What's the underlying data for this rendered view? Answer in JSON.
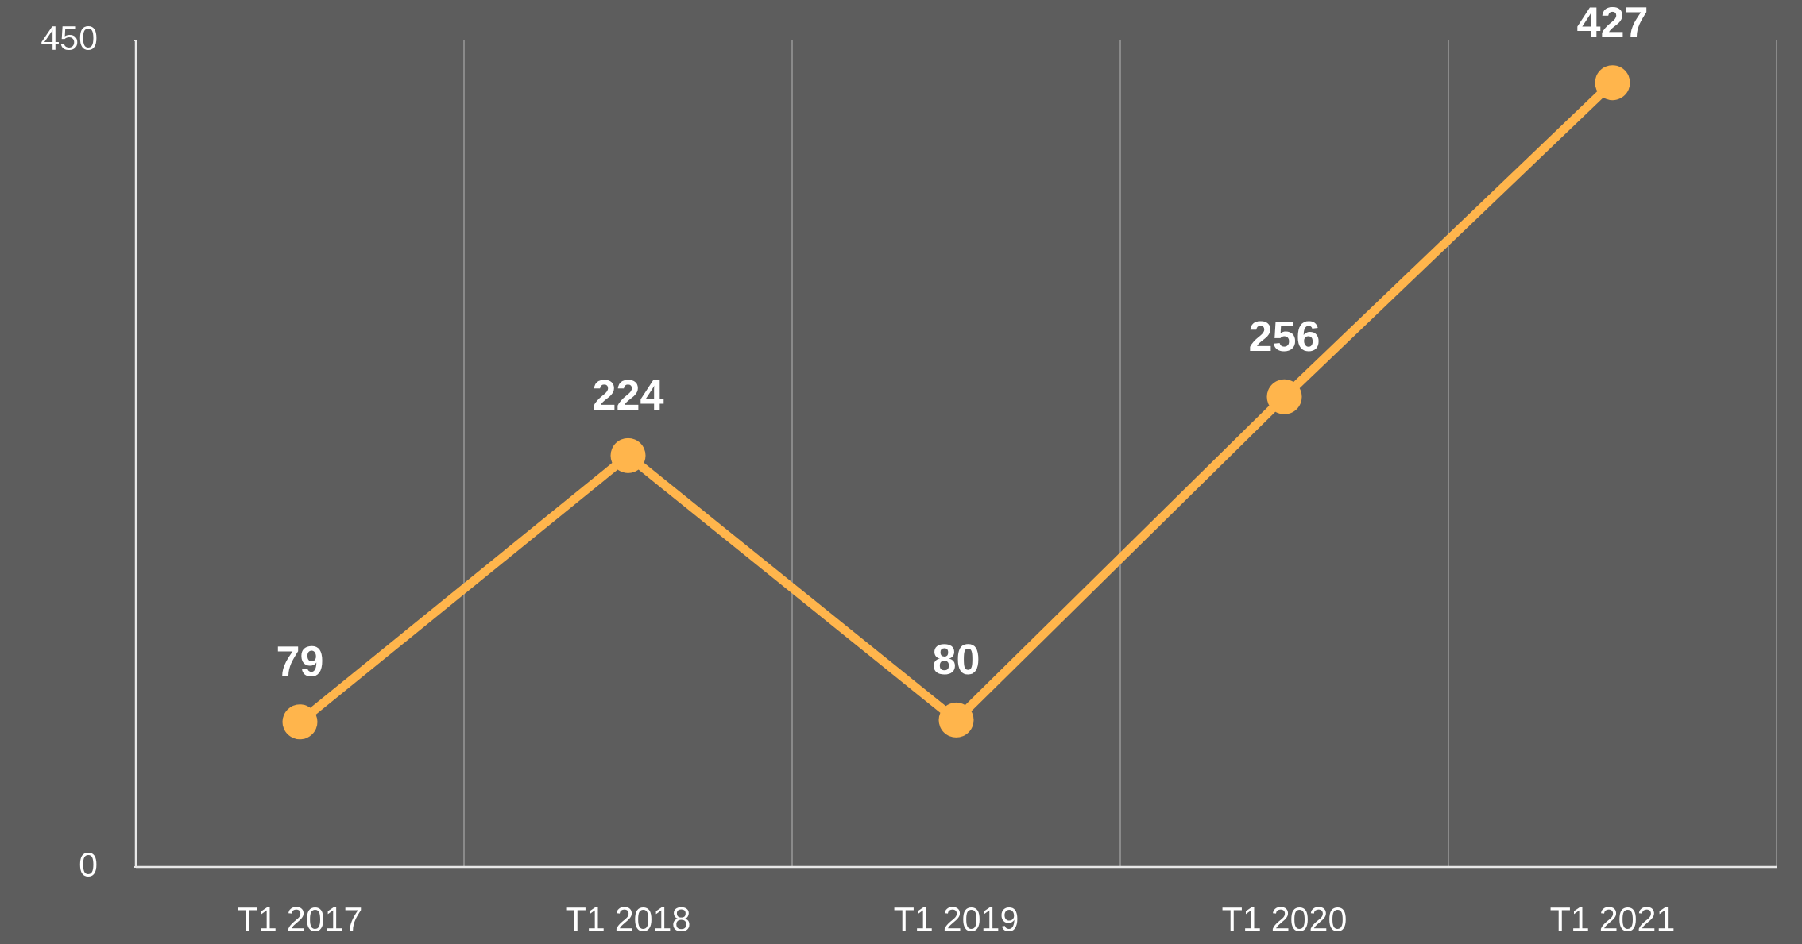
{
  "chart_data": {
    "type": "line",
    "categories": [
      "T1 2017",
      "T1 2018",
      "T1 2019",
      "T1 2020",
      "T1 2021"
    ],
    "values": [
      79,
      224,
      80,
      256,
      427
    ],
    "color": "#ffb54c",
    "ylim": [
      0,
      450
    ],
    "yticks": [
      0,
      450
    ],
    "grid": true,
    "data_labels": true
  }
}
